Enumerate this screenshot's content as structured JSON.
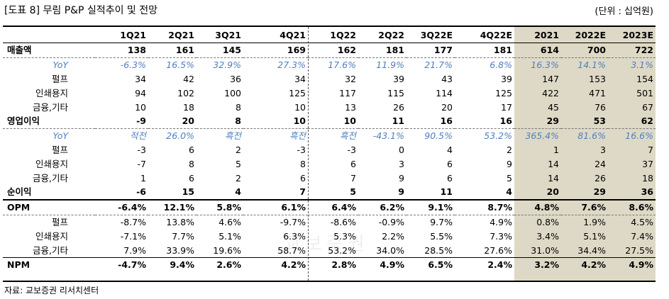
{
  "title": "[도표 8] 무림 P&P 실적추이 및 전망",
  "unit": "(단위 : 십억원)",
  "source": "자료: 교보증권 리서치센터",
  "watermark": "교보증권",
  "columns": [
    "",
    "1Q21",
    "2Q21",
    "3Q21",
    "4Q21",
    "1Q22",
    "2Q22",
    "3Q22E",
    "4Q22E",
    "2021",
    "2022E",
    "2023E"
  ],
  "rows": [
    {
      "label": "매출액",
      "cells": [
        "138",
        "161",
        "145",
        "169",
        "162",
        "181",
        "177",
        "181",
        "614",
        "700",
        "722"
      ]
    },
    {
      "label": "YoY",
      "cells": [
        "-6.3%",
        "16.5%",
        "32.9%",
        "27.3%",
        "17.6%",
        "11.9%",
        "21.7%",
        "6.8%",
        "16.3%",
        "14.1%",
        "3.1%"
      ]
    },
    {
      "label": "펄프",
      "cells": [
        "34",
        "42",
        "36",
        "34",
        "32",
        "39",
        "43",
        "39",
        "147",
        "153",
        "154"
      ]
    },
    {
      "label": "인쇄용지",
      "cells": [
        "94",
        "102",
        "100",
        "125",
        "117",
        "115",
        "114",
        "125",
        "422",
        "471",
        "501"
      ]
    },
    {
      "label": "금융,기타",
      "cells": [
        "10",
        "18",
        "8",
        "10",
        "13",
        "26",
        "20",
        "17",
        "45",
        "76",
        "67"
      ]
    },
    {
      "label": "영업이익",
      "cells": [
        "-9",
        "20",
        "8",
        "10",
        "10",
        "11",
        "16",
        "16",
        "29",
        "53",
        "62"
      ]
    },
    {
      "label": "YoY",
      "cells": [
        "적전",
        "26.0%",
        "흑전",
        "흑전",
        "흑전",
        "-43.1%",
        "90.5%",
        "53.2%",
        "365.4%",
        "81.6%",
        "16.6%"
      ]
    },
    {
      "label": "펄프",
      "cells": [
        "-3",
        "6",
        "2",
        "-3",
        "-3",
        "0",
        "4",
        "2",
        "1",
        "3",
        "7"
      ]
    },
    {
      "label": "인쇄용지",
      "cells": [
        "-7",
        "8",
        "5",
        "8",
        "6",
        "3",
        "6",
        "9",
        "14",
        "24",
        "37"
      ]
    },
    {
      "label": "금융,기타",
      "cells": [
        "1",
        "6",
        "2",
        "6",
        "7",
        "9",
        "6",
        "5",
        "14",
        "26",
        "18"
      ]
    },
    {
      "label": "순이익",
      "cells": [
        "-6",
        "15",
        "4",
        "7",
        "5",
        "9",
        "11",
        "4",
        "20",
        "29",
        "36"
      ]
    },
    {
      "label": "OPM",
      "cells": [
        "-6.4%",
        "12.1%",
        "5.8%",
        "6.1%",
        "6.4%",
        "6.2%",
        "9.1%",
        "8.7%",
        "4.8%",
        "7.6%",
        "8.6%"
      ]
    },
    {
      "label": "펄프",
      "cells": [
        "-8.7%",
        "13.8%",
        "4.6%",
        "-9.7%",
        "-8.6%",
        "-0.9%",
        "9.7%",
        "4.9%",
        "0.8%",
        "1.9%",
        "4.5%"
      ]
    },
    {
      "label": "인쇄용지",
      "cells": [
        "-7.1%",
        "7.7%",
        "5.1%",
        "6.3%",
        "5.3%",
        "2.2%",
        "5.5%",
        "7.3%",
        "3.4%",
        "5.1%",
        "7.4%"
      ]
    },
    {
      "label": "금융,기타",
      "cells": [
        "7.9%",
        "33.9%",
        "19.6%",
        "58.7%",
        "53.2%",
        "34.0%",
        "28.5%",
        "27.6%",
        "31.0%",
        "34.4%",
        "27.5%"
      ]
    },
    {
      "label": "NPM",
      "cells": [
        "-4.7%",
        "9.4%",
        "2.6%",
        "4.2%",
        "2.8%",
        "4.9%",
        "6.5%",
        "2.4%",
        "3.2%",
        "4.2%",
        "4.9%"
      ]
    }
  ]
}
